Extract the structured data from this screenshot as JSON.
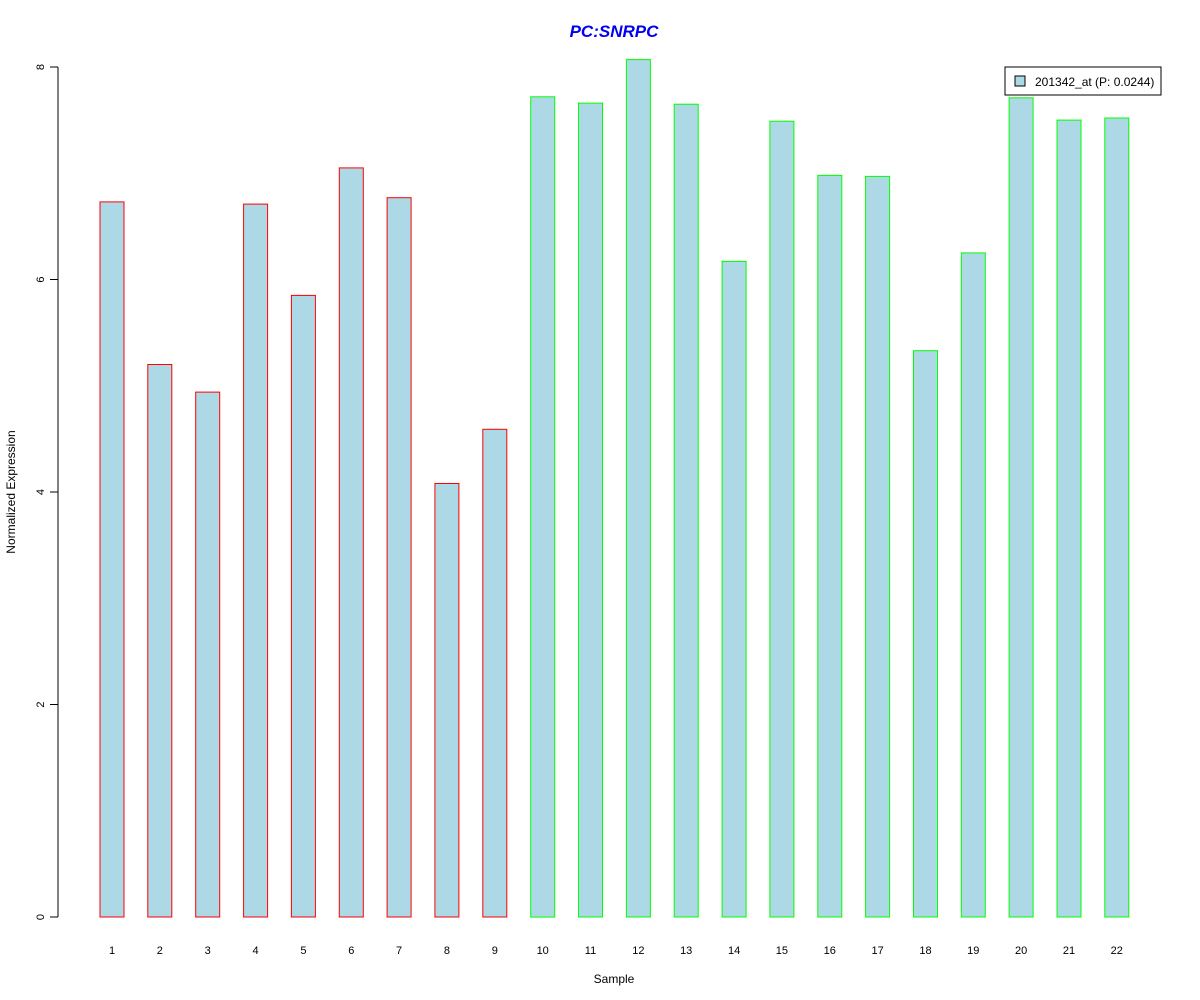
{
  "chart_data": {
    "type": "bar",
    "title": "PC:SNRPC",
    "xlabel": "Sample",
    "ylabel": "Normalized Expression",
    "categories": [
      "1",
      "2",
      "3",
      "4",
      "5",
      "6",
      "7",
      "8",
      "9",
      "10",
      "11",
      "12",
      "13",
      "14",
      "15",
      "16",
      "17",
      "18",
      "19",
      "20",
      "21",
      "22"
    ],
    "values": [
      6.73,
      5.2,
      4.94,
      6.71,
      5.85,
      7.05,
      6.77,
      4.08,
      4.59,
      7.72,
      7.66,
      8.07,
      7.65,
      6.17,
      7.49,
      6.98,
      6.97,
      5.33,
      6.25,
      7.71,
      7.5,
      7.52
    ],
    "groups": [
      "red",
      "red",
      "red",
      "red",
      "red",
      "red",
      "red",
      "red",
      "red",
      "green",
      "green",
      "green",
      "green",
      "green",
      "green",
      "green",
      "green",
      "green",
      "green",
      "green",
      "green",
      "green"
    ],
    "ylim": [
      0,
      8
    ],
    "yticks": [
      0,
      2,
      4,
      6,
      8
    ],
    "grid": false,
    "legend": {
      "position": "top-right",
      "entries": [
        "201342_at (P: 0.0244)"
      ]
    },
    "colors": {
      "fill": "#add8e6",
      "group1_border": "#ff0000",
      "group2_border": "#00ff00",
      "title": "#0000ee"
    }
  }
}
